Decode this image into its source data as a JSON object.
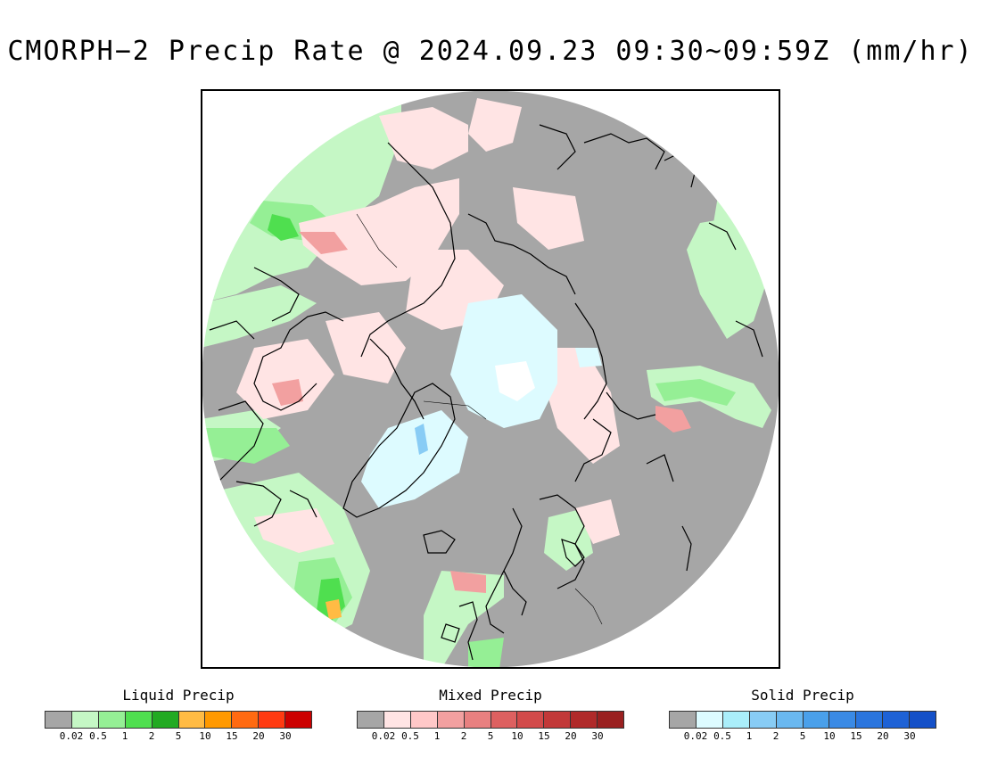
{
  "title": "CMORPH−2 Precip Rate @ 2024.09.23 09:30~09:59Z (mm/hr)",
  "map": {
    "projection": "north-polar-stereographic",
    "background_color": "#a6a6a6",
    "circle_border": "white"
  },
  "legends": [
    {
      "name": "liquid",
      "title": "Liquid Precip",
      "colors": [
        "#a6a6a6",
        "#c5f7c5",
        "#95ef95",
        "#4fdf4f",
        "#22aa22",
        "#ffbb44",
        "#ff9900",
        "#ff6a11",
        "#ff3a11",
        "#cc0000"
      ],
      "ticks": [
        "0.02",
        "0.5",
        "1",
        "2",
        "5",
        "10",
        "15",
        "20",
        "30"
      ]
    },
    {
      "name": "mixed",
      "title": "Mixed Precip",
      "colors": [
        "#a6a6a6",
        "#ffe4e4",
        "#ffc8c8",
        "#f2a0a0",
        "#e88080",
        "#dd6060",
        "#d24a4a",
        "#c23838",
        "#b02a2a",
        "#9a2020"
      ],
      "ticks": [
        "0.02",
        "0.5",
        "1",
        "2",
        "5",
        "10",
        "15",
        "20",
        "30"
      ]
    },
    {
      "name": "solid",
      "title": "Solid Precip",
      "colors": [
        "#a6a6a6",
        "#ddfbff",
        "#aaeefa",
        "#88ccf5",
        "#6ab8f0",
        "#4aa0ea",
        "#3a8ae5",
        "#2a75de",
        "#1e62d6",
        "#1450c8"
      ],
      "ticks": [
        "0.02",
        "0.5",
        "1",
        "2",
        "5",
        "10",
        "15",
        "20",
        "30"
      ]
    }
  ]
}
